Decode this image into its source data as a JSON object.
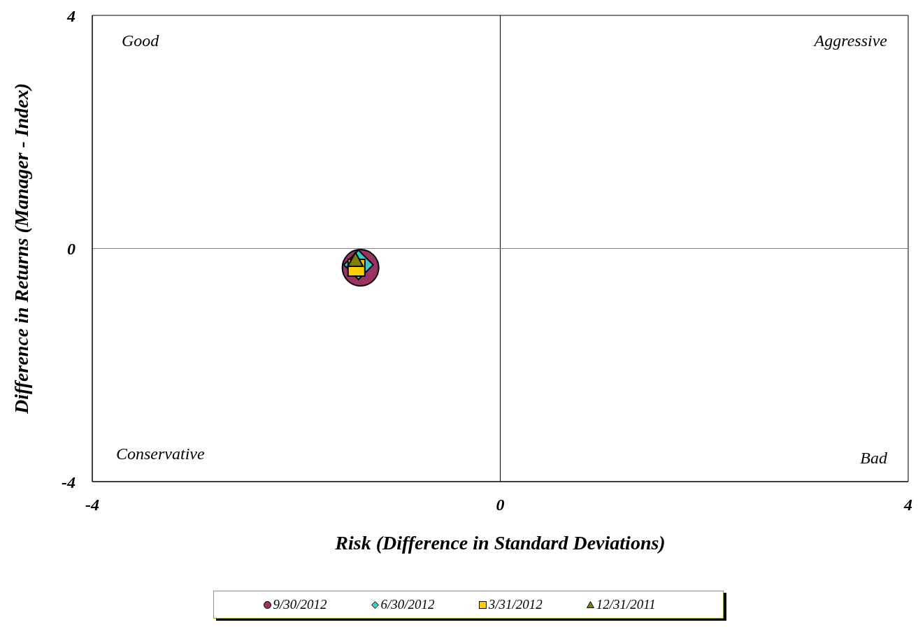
{
  "chart_data": {
    "type": "scatter",
    "xlabel": "Risk (Difference in Standard Deviations)",
    "ylabel": "Difference in Returns (Manager - Index)",
    "xlim": [
      -4,
      4
    ],
    "xticks": [
      -4,
      0,
      4
    ],
    "ylim": [
      -4,
      4
    ],
    "yticks": [
      -4,
      0,
      4
    ],
    "grid": false,
    "legend": "bottom",
    "ref_lines": [
      {
        "axis": "x",
        "value": 0,
        "color": "#000000"
      },
      {
        "axis": "y",
        "value": 0,
        "color": "#808080"
      }
    ],
    "annotations": [
      "Good",
      "Aggressive",
      "Conservative",
      "Bad"
    ],
    "series": [
      {
        "name": "9/30/2012",
        "color": "#993366",
        "marker": "circle",
        "x": [
          -1.37
        ],
        "values": [
          -0.33
        ]
      },
      {
        "name": "6/30/2012",
        "color": "#33cccc",
        "marker": "diamond",
        "x": [
          -1.39
        ],
        "values": [
          -0.28
        ]
      },
      {
        "name": "3/31/2012",
        "color": "#ffcc00",
        "marker": "square",
        "x": [
          -1.41
        ],
        "values": [
          -0.33
        ]
      },
      {
        "name": "12/31/2011",
        "color": "#808000",
        "marker": "triangle",
        "x": [
          -1.42
        ],
        "values": [
          -0.2
        ]
      }
    ]
  }
}
